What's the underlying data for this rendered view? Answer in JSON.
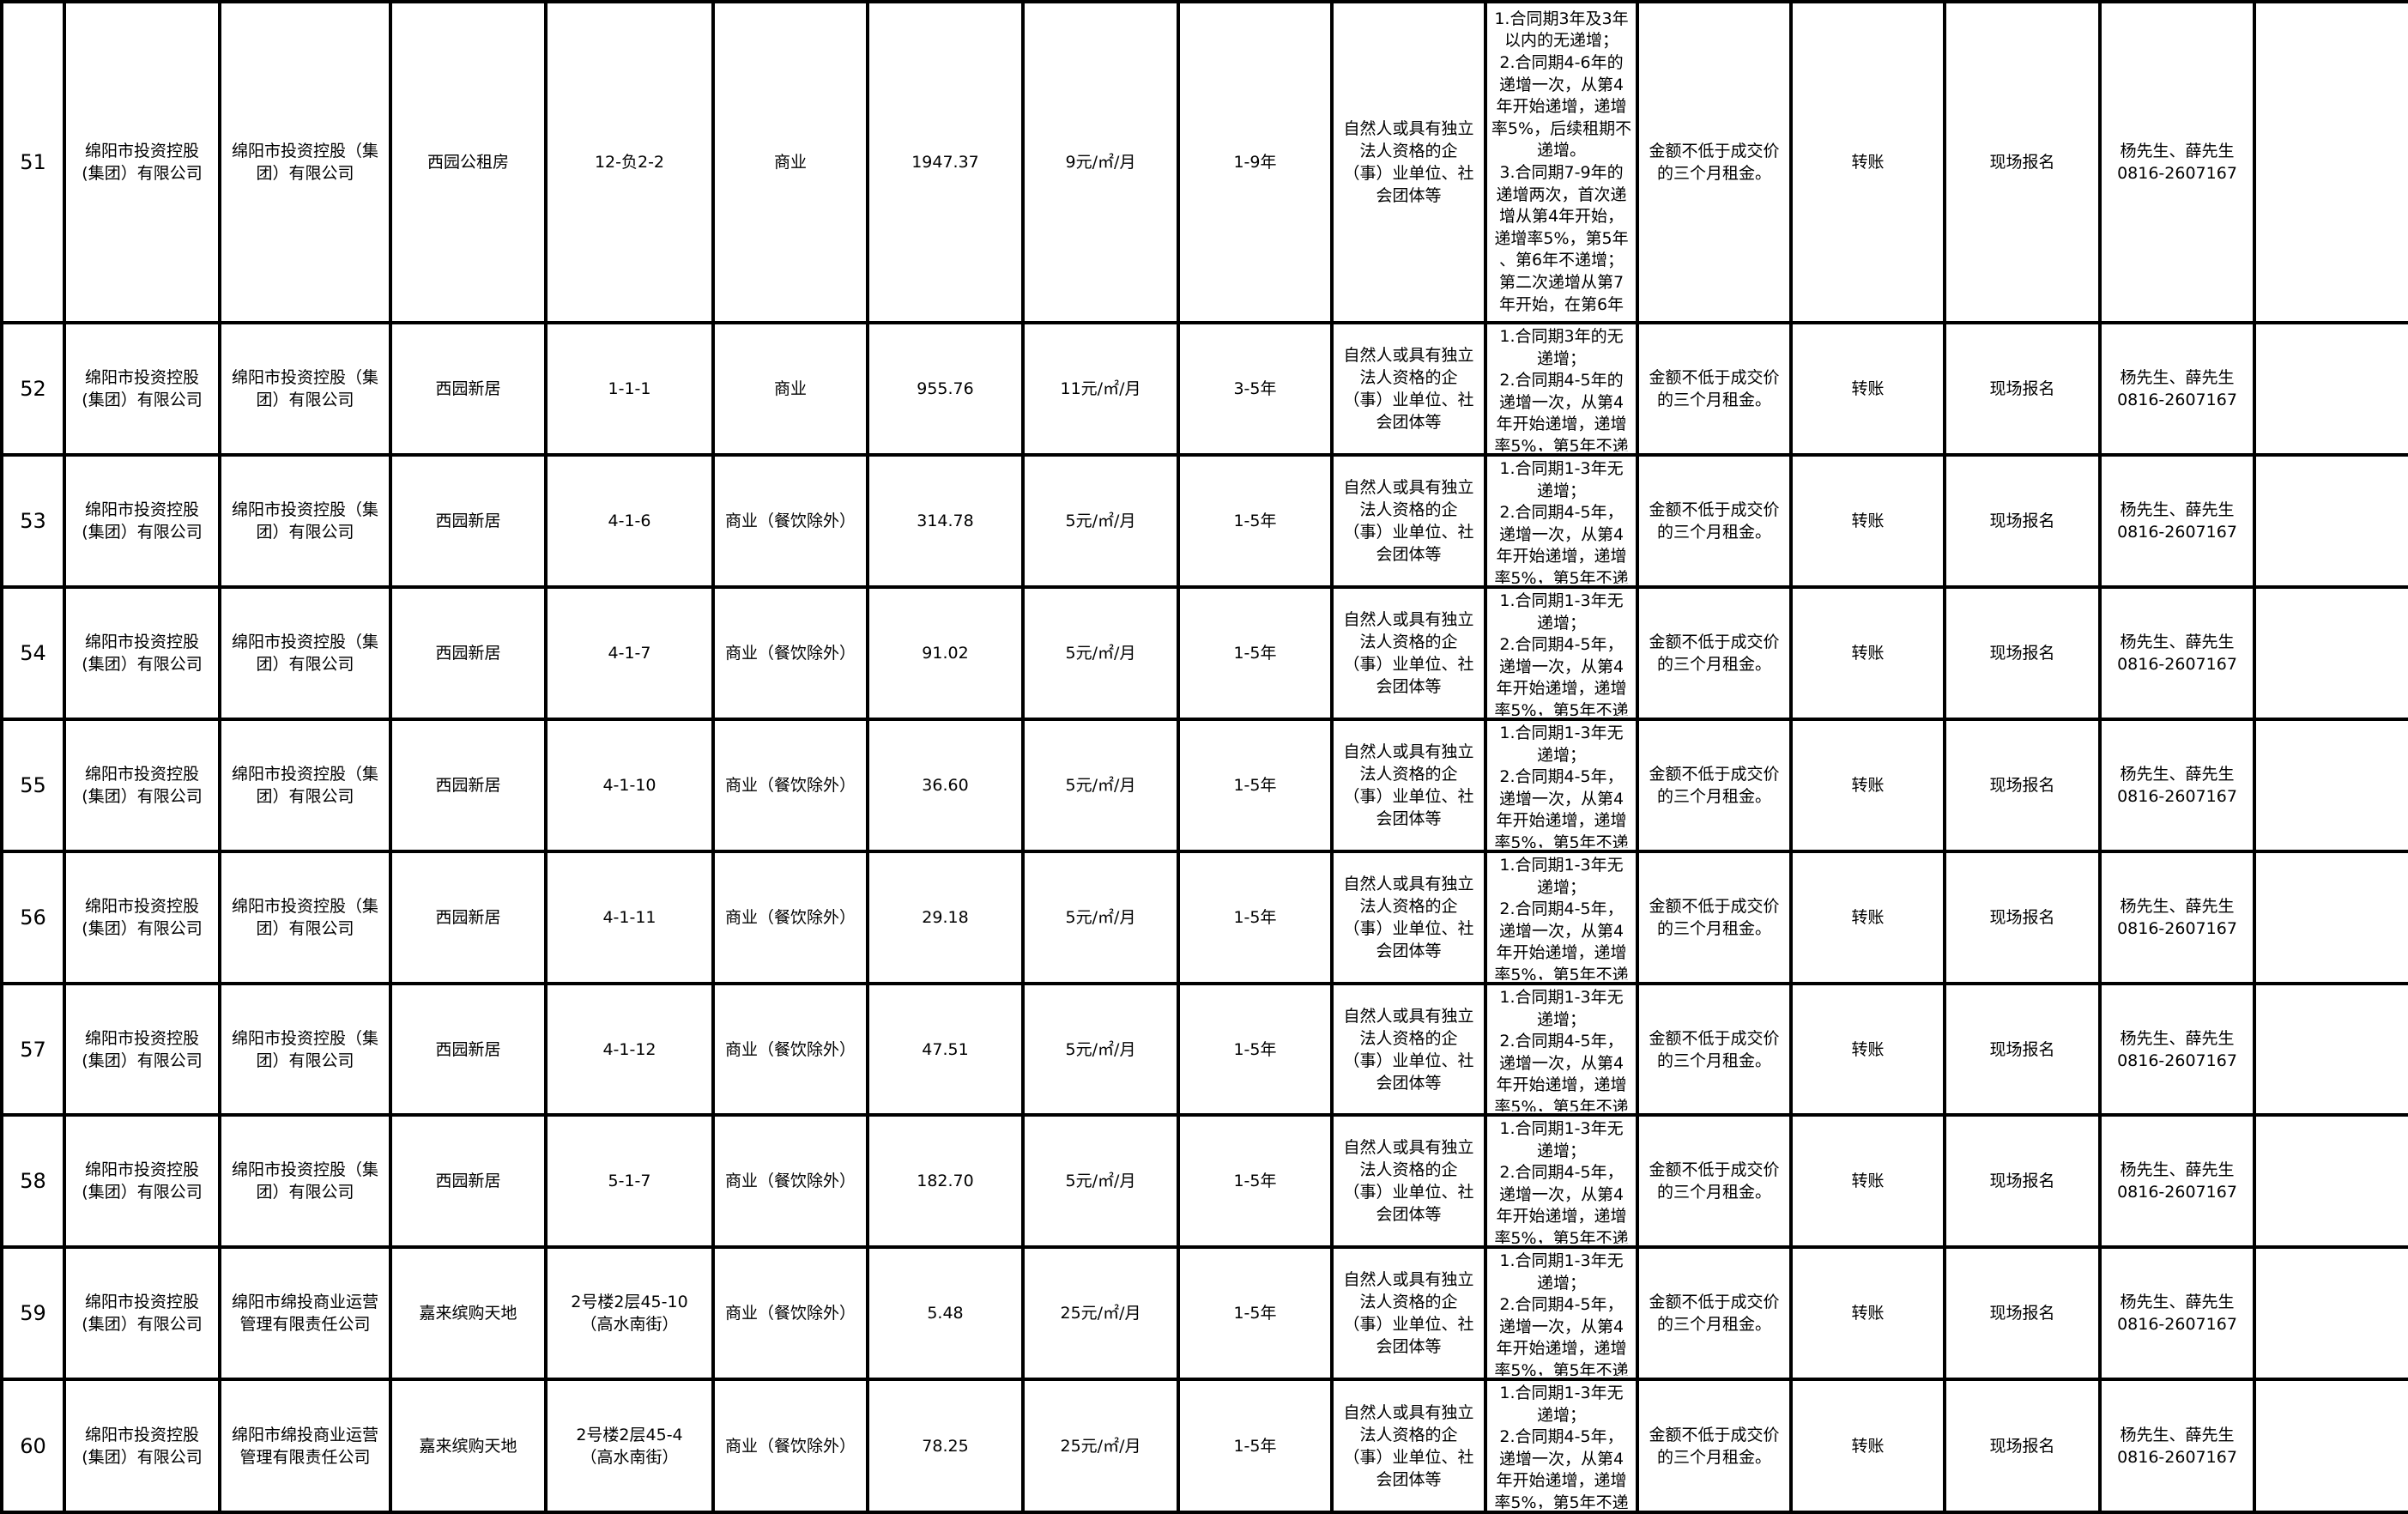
{
  "rows": [
    {
      "no": "51",
      "owner": "绵阳市投资控股\n(集团）有限公司",
      "lessor": "绵阳市投资控股（集\n团）有限公司",
      "project": "西园公租房",
      "unit": "12-负2-2",
      "use": "商业",
      "area": "1947.37",
      "price": "9元/㎡/月",
      "term": "1-9年",
      "eligibility": "自然人或具有独立\n法人资格的企\n（事）业单位、社\n会团体等",
      "escalation": "1.合同期3年及3年\n以内的无递增；\n2.合同期4-6年的\n递增一次，从第4\n年开始递增，递增\n率5%，后续租期不\n递增。\n3.合同期7-9年的\n递增两次，首次递\n增从第4年开始，\n递增率5%，第5年\n、第6年不递增；\n第二次递增从第7\n年开始，在第6年",
      "deposit": "金额不低于成交价\n的三个月租金。",
      "payment": "转账",
      "signup": "现场报名",
      "contact": "杨先生、薛先生\n0816-2607167",
      "remark": ""
    },
    {
      "no": "52",
      "owner": "绵阳市投资控股\n(集团）有限公司",
      "lessor": "绵阳市投资控股（集\n团）有限公司",
      "project": "西园新居",
      "unit": "1-1-1",
      "use": "商业",
      "area": "955.76",
      "price": "11元/㎡/月",
      "term": "3-5年",
      "eligibility": "自然人或具有独立\n法人资格的企\n（事）业单位、社\n会团体等",
      "escalation": "1.合同期3年的无\n递增；\n2.合同期4-5年的\n递增一次，从第4\n年开始递增，递增\n率5%，第5年不递",
      "deposit": "金额不低于成交价\n的三个月租金。",
      "payment": "转账",
      "signup": "现场报名",
      "contact": "杨先生、薛先生\n0816-2607167",
      "remark": ""
    },
    {
      "no": "53",
      "owner": "绵阳市投资控股\n(集团）有限公司",
      "lessor": "绵阳市投资控股（集\n团）有限公司",
      "project": "西园新居",
      "unit": "4-1-6",
      "use": "商业（餐饮除外）",
      "area": "314.78",
      "price": "5元/㎡/月",
      "term": "1-5年",
      "eligibility": "自然人或具有独立\n法人资格的企\n（事）业单位、社\n会团体等",
      "escalation": "1.合同期1-3年无\n递增；\n2.合同期4-5年，\n递增一次，从第4\n年开始递增，递增\n率5%，第5年不递",
      "deposit": "金额不低于成交价\n的三个月租金。",
      "payment": "转账",
      "signup": "现场报名",
      "contact": "杨先生、薛先生\n0816-2607167",
      "remark": ""
    },
    {
      "no": "54",
      "owner": "绵阳市投资控股\n(集团）有限公司",
      "lessor": "绵阳市投资控股（集\n团）有限公司",
      "project": "西园新居",
      "unit": "4-1-7",
      "use": "商业（餐饮除外）",
      "area": "91.02",
      "price": "5元/㎡/月",
      "term": "1-5年",
      "eligibility": "自然人或具有独立\n法人资格的企\n（事）业单位、社\n会团体等",
      "escalation": "1.合同期1-3年无\n递增；\n2.合同期4-5年，\n递增一次，从第4\n年开始递增，递增\n率5%，第5年不递",
      "deposit": "金额不低于成交价\n的三个月租金。",
      "payment": "转账",
      "signup": "现场报名",
      "contact": "杨先生、薛先生\n0816-2607167",
      "remark": ""
    },
    {
      "no": "55",
      "owner": "绵阳市投资控股\n(集团）有限公司",
      "lessor": "绵阳市投资控股（集\n团）有限公司",
      "project": "西园新居",
      "unit": "4-1-10",
      "use": "商业（餐饮除外）",
      "area": "36.60",
      "price": "5元/㎡/月",
      "term": "1-5年",
      "eligibility": "自然人或具有独立\n法人资格的企\n（事）业单位、社\n会团体等",
      "escalation": "1.合同期1-3年无\n递增；\n2.合同期4-5年，\n递增一次，从第4\n年开始递增，递增\n率5%，第5年不递",
      "deposit": "金额不低于成交价\n的三个月租金。",
      "payment": "转账",
      "signup": "现场报名",
      "contact": "杨先生、薛先生\n0816-2607167",
      "remark": ""
    },
    {
      "no": "56",
      "owner": "绵阳市投资控股\n(集团）有限公司",
      "lessor": "绵阳市投资控股（集\n团）有限公司",
      "project": "西园新居",
      "unit": "4-1-11",
      "use": "商业（餐饮除外）",
      "area": "29.18",
      "price": "5元/㎡/月",
      "term": "1-5年",
      "eligibility": "自然人或具有独立\n法人资格的企\n（事）业单位、社\n会团体等",
      "escalation": "1.合同期1-3年无\n递增；\n2.合同期4-5年，\n递增一次，从第4\n年开始递增，递增\n率5%，第5年不递",
      "deposit": "金额不低于成交价\n的三个月租金。",
      "payment": "转账",
      "signup": "现场报名",
      "contact": "杨先生、薛先生\n0816-2607167",
      "remark": ""
    },
    {
      "no": "57",
      "owner": "绵阳市投资控股\n(集团）有限公司",
      "lessor": "绵阳市投资控股（集\n团）有限公司",
      "project": "西园新居",
      "unit": "4-1-12",
      "use": "商业（餐饮除外）",
      "area": "47.51",
      "price": "5元/㎡/月",
      "term": "1-5年",
      "eligibility": "自然人或具有独立\n法人资格的企\n（事）业单位、社\n会团体等",
      "escalation": "1.合同期1-3年无\n递增；\n2.合同期4-5年，\n递增一次，从第4\n年开始递增，递增\n率5%，第5年不递",
      "deposit": "金额不低于成交价\n的三个月租金。",
      "payment": "转账",
      "signup": "现场报名",
      "contact": "杨先生、薛先生\n0816-2607167",
      "remark": ""
    },
    {
      "no": "58",
      "owner": "绵阳市投资控股\n(集团）有限公司",
      "lessor": "绵阳市投资控股（集\n团）有限公司",
      "project": "西园新居",
      "unit": "5-1-7",
      "use": "商业（餐饮除外）",
      "area": "182.70",
      "price": "5元/㎡/月",
      "term": "1-5年",
      "eligibility": "自然人或具有独立\n法人资格的企\n（事）业单位、社\n会团体等",
      "escalation": "1.合同期1-3年无\n递增；\n2.合同期4-5年，\n递增一次，从第4\n年开始递增，递增\n率5%，第5年不递",
      "deposit": "金额不低于成交价\n的三个月租金。",
      "payment": "转账",
      "signup": "现场报名",
      "contact": "杨先生、薛先生\n0816-2607167",
      "remark": ""
    },
    {
      "no": "59",
      "owner": "绵阳市投资控股\n(集团）有限公司",
      "lessor": "绵阳市绵投商业运营\n管理有限责任公司",
      "project": "嘉来缤购天地",
      "unit": "2号楼2层45-10\n（高水南街）",
      "use": "商业（餐饮除外）",
      "area": "5.48",
      "price": "25元/㎡/月",
      "term": "1-5年",
      "eligibility": "自然人或具有独立\n法人资格的企\n（事）业单位、社\n会团体等",
      "escalation": "1.合同期1-3年无\n递增；\n2.合同期4-5年，\n递增一次，从第4\n年开始递增，递增\n率5%，第5年不递",
      "deposit": "金额不低于成交价\n的三个月租金。",
      "payment": "转账",
      "signup": "现场报名",
      "contact": "杨先生、薛先生\n0816-2607167",
      "remark": ""
    },
    {
      "no": "60",
      "owner": "绵阳市投资控股\n(集团）有限公司",
      "lessor": "绵阳市绵投商业运营\n管理有限责任公司",
      "project": "嘉来缤购天地",
      "unit": "2号楼2层45-4\n（高水南街）",
      "use": "商业（餐饮除外）",
      "area": "78.25",
      "price": "25元/㎡/月",
      "term": "1-5年",
      "eligibility": "自然人或具有独立\n法人资格的企\n（事）业单位、社\n会团体等",
      "escalation": "1.合同期1-3年无\n递增；\n2.合同期4-5年，\n递增一次，从第4\n年开始递增，递增\n率5%，第5年不递",
      "deposit": "金额不低于成交价\n的三个月租金。",
      "payment": "转账",
      "signup": "现场报名",
      "contact": "杨先生、薛先生\n0816-2607167",
      "remark": ""
    }
  ]
}
